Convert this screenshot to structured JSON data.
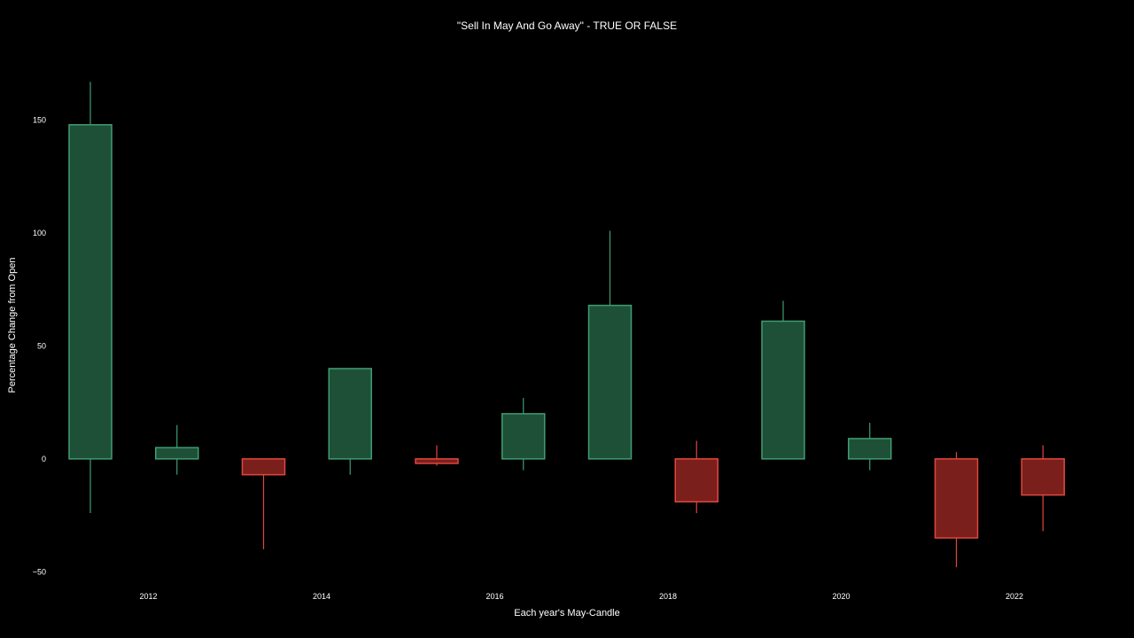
{
  "chart_data": {
    "type": "candlestick",
    "title": "\"Sell In May And Go Away\" - TRUE OR FALSE",
    "xlabel": "Each year's May-Candle",
    "ylabel": "Percentage Change from Open",
    "ylim": [
      -55,
      175
    ],
    "y_ticks": [
      -50,
      0,
      50,
      100,
      150
    ],
    "x_ticks": [
      2012,
      2014,
      2016,
      2018,
      2020,
      2022
    ],
    "grid": false,
    "colors": {
      "background": "#000000",
      "text": "#ffffff",
      "increasing_fill": "#1e5038",
      "increasing_line": "#3f9c72",
      "decreasing_fill": "#7b1f1c",
      "decreasing_line": "#e0473c"
    },
    "candles": [
      {
        "year": 2011,
        "open": 0,
        "high": 167,
        "low": -24,
        "close": 148
      },
      {
        "year": 2012,
        "open": 0,
        "high": 15,
        "low": -7,
        "close": 5
      },
      {
        "year": 2013,
        "open": 0,
        "high": 0,
        "low": -40,
        "close": -7
      },
      {
        "year": 2014,
        "open": 0,
        "high": 40,
        "low": -7,
        "close": 40
      },
      {
        "year": 2015,
        "open": 0,
        "high": 6,
        "low": -3,
        "close": -2
      },
      {
        "year": 2016,
        "open": 0,
        "high": 27,
        "low": -5,
        "close": 20
      },
      {
        "year": 2017,
        "open": 0,
        "high": 101,
        "low": 0,
        "close": 68
      },
      {
        "year": 2018,
        "open": 0,
        "high": 8,
        "low": -24,
        "close": -19
      },
      {
        "year": 2019,
        "open": 0,
        "high": 70,
        "low": 0,
        "close": 61
      },
      {
        "year": 2020,
        "open": 0,
        "high": 16,
        "low": -5,
        "close": 9
      },
      {
        "year": 2021,
        "open": 0,
        "high": 3,
        "low": -48,
        "close": -35
      },
      {
        "year": 2022,
        "open": 0,
        "high": 6,
        "low": -32,
        "close": -16
      }
    ]
  }
}
